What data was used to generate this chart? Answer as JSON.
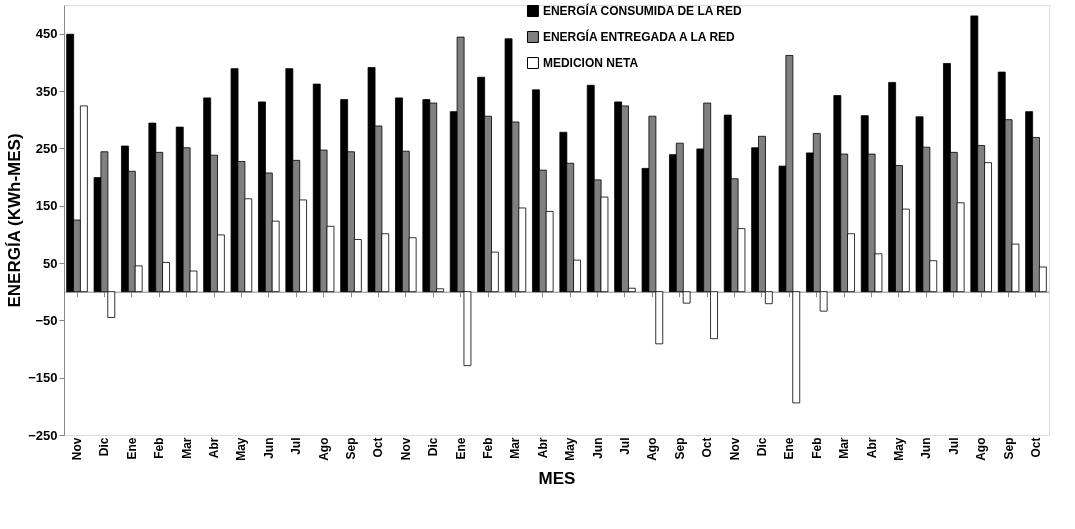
{
  "chart_data": {
    "type": "bar",
    "xlabel": "MES",
    "ylabel": "ENERGÍA (KWh-MES)",
    "categories": [
      "Nov",
      "Dic",
      "Ene",
      "Feb",
      "Mar",
      "Abr",
      "May",
      "Jun",
      "Jul",
      "Ago",
      "Sep",
      "Oct",
      "Nov",
      "Dic",
      "Ene",
      "Feb",
      "Mar",
      "Abr",
      "May",
      "Jun",
      "Jul",
      "Ago",
      "Sep",
      "Oct",
      "Nov",
      "Dic",
      "Ene",
      "Feb",
      "Mar",
      "Abr",
      "May",
      "Jun",
      "Jul",
      "Ago",
      "Sep",
      "Oct"
    ],
    "series": [
      {
        "name": "ENERGÍA CONSUMIDA DE LA RED",
        "color": "#000000",
        "values": [
          449,
          199,
          254,
          294,
          287,
          338,
          389,
          331,
          389,
          362,
          335,
          391,
          338,
          335,
          314,
          374,
          441,
          352,
          278,
          360,
          331,
          215,
          239,
          249,
          308,
          251,
          219,
          242,
          342,
          307,
          365,
          305,
          398,
          481,
          383,
          314
        ]
      },
      {
        "name": "ENERGÍA ENTREGADA A LA RED",
        "color": "#808080",
        "values": [
          125,
          244,
          210,
          243,
          251,
          238,
          227,
          207,
          229,
          247,
          244,
          289,
          245,
          329,
          444,
          306,
          296,
          212,
          224,
          195,
          324,
          306,
          259,
          329,
          197,
          271,
          412,
          276,
          240,
          240,
          220,
          252,
          243,
          255,
          300,
          269
        ]
      },
      {
        "name": "MEDICION NETA",
        "color": "#ffffff",
        "values": [
          324,
          -45,
          45,
          51,
          36,
          99,
          162,
          123,
          160,
          114,
          91,
          101,
          94,
          5,
          -129,
          69,
          146,
          140,
          55,
          165,
          6,
          -91,
          -20,
          -82,
          110,
          -21,
          -194,
          -34,
          101,
          66,
          144,
          54,
          155,
          225,
          83,
          43
        ]
      }
    ],
    "ylim": [
      -250,
      500
    ],
    "yticks": [
      450,
      350,
      250,
      150,
      50,
      -50,
      -150,
      -250
    ],
    "grid": false,
    "legend": "top right"
  }
}
